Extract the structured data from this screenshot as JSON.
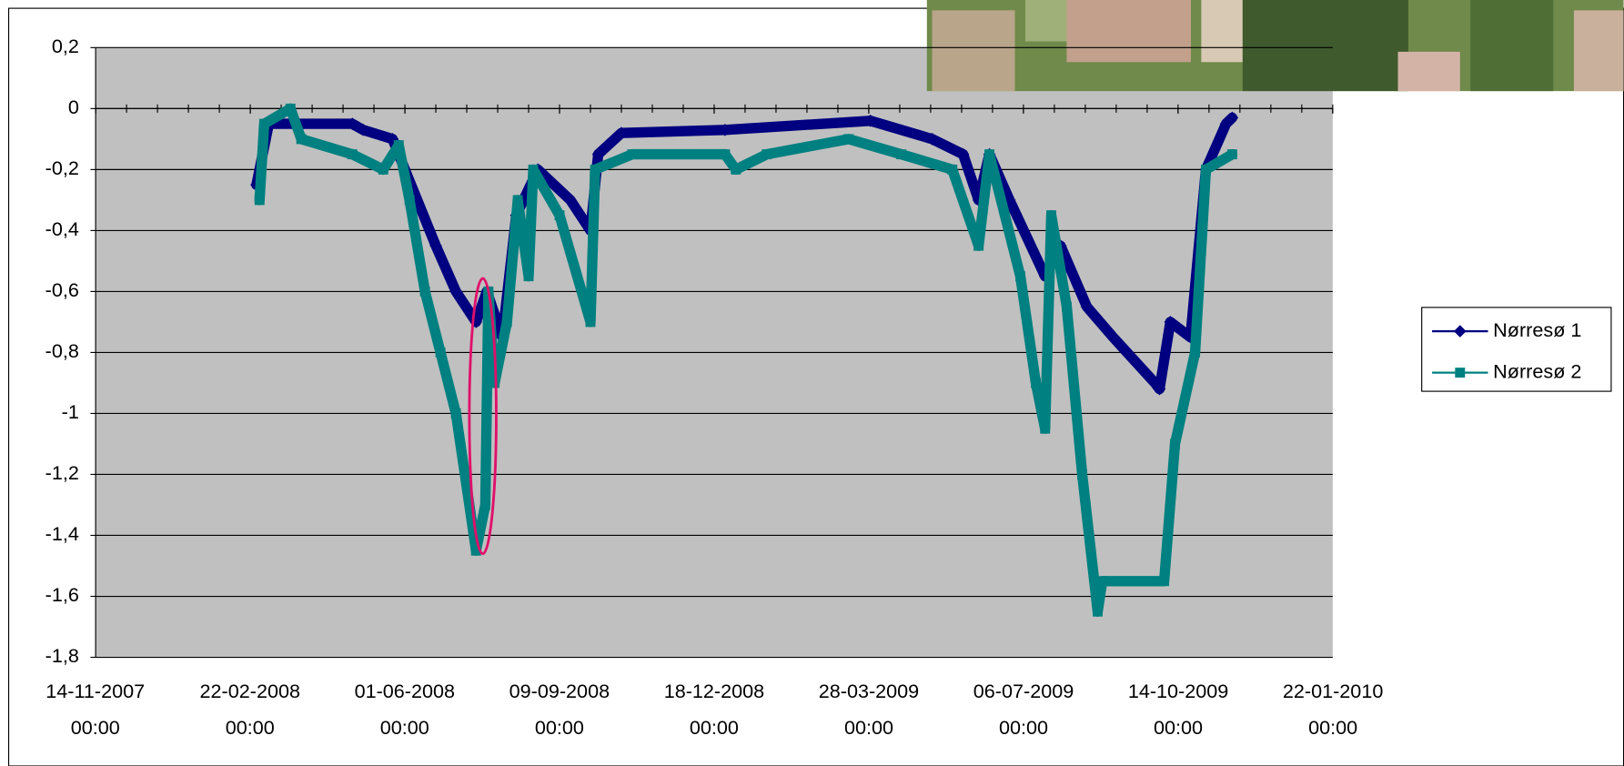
{
  "chart_data": {
    "type": "line",
    "xlim": [
      "2007-11-14",
      "2010-01-22"
    ],
    "xticks": [
      {
        "value": "2007-11-14",
        "label": "14-11-2007 00:00"
      },
      {
        "value": "2008-02-22",
        "label": "22-02-2008 00:00"
      },
      {
        "value": "2008-06-01",
        "label": "01-06-2008 00:00"
      },
      {
        "value": "2008-09-09",
        "label": "09-09-2008 00:00"
      },
      {
        "value": "2008-12-18",
        "label": "18-12-2008 00:00"
      },
      {
        "value": "2009-03-28",
        "label": "28-03-2009 00:00"
      },
      {
        "value": "2009-07-06",
        "label": "06-07-2009 00:00"
      },
      {
        "value": "2009-10-14",
        "label": "14-10-2009 00:00"
      },
      {
        "value": "2010-01-22",
        "label": "22-01-2010 00:00"
      }
    ],
    "ylim": [
      -1.8,
      0.2
    ],
    "yticks": [
      {
        "value": 0.2,
        "label": "0,2"
      },
      0,
      {
        "value": -0.2,
        "label": "-0,2"
      },
      {
        "value": -0.4,
        "label": "-0,4"
      },
      {
        "value": -0.6,
        "label": "-0,6"
      },
      {
        "value": -0.8,
        "label": "-0,8"
      },
      -1,
      {
        "value": -1.2,
        "label": "-1,2"
      },
      {
        "value": -1.4,
        "label": "-1,4"
      },
      {
        "value": -1.6,
        "label": "-1,6"
      },
      {
        "value": -1.8,
        "label": "-1,8"
      }
    ],
    "grid": true,
    "legend": "right",
    "series": [
      {
        "name": "Nørresø 1",
        "color": "#000080",
        "marker": "diamond",
        "x": [
          "2008-02-26",
          "2008-03-05",
          "2008-04-28",
          "2008-05-05",
          "2008-05-24",
          "2008-06-21",
          "2008-07-04",
          "2008-07-17",
          "2008-07-24",
          "2008-08-03",
          "2008-08-12",
          "2008-08-26",
          "2008-09-16",
          "2008-09-29",
          "2008-10-04",
          "2008-10-19",
          "2008-12-25",
          "2009-03-29",
          "2009-05-08",
          "2009-05-28",
          "2009-06-07",
          "2009-06-14",
          "2009-06-27",
          "2009-07-20",
          "2009-07-30",
          "2009-08-16",
          "2009-09-02",
          "2009-09-29",
          "2009-10-02",
          "2009-10-09",
          "2009-10-22",
          "2009-11-01",
          "2009-11-14",
          "2009-11-18"
        ],
        "values": [
          -0.25,
          -0.05,
          -0.05,
          -0.07,
          -0.1,
          -0.45,
          -0.6,
          -0.7,
          -0.6,
          -0.75,
          -0.35,
          -0.2,
          -0.3,
          -0.4,
          -0.15,
          -0.08,
          -0.07,
          -0.04,
          -0.1,
          -0.15,
          -0.3,
          -0.15,
          -0.3,
          -0.55,
          -0.45,
          -0.65,
          -0.75,
          -0.9,
          -0.92,
          -0.7,
          -0.75,
          -0.2,
          -0.05,
          -0.03
        ]
      },
      {
        "name": "Nørresø 2",
        "color": "#008080",
        "marker": "square",
        "x": [
          "2008-02-28",
          "2008-03-02",
          "2008-03-19",
          "2008-03-26",
          "2008-04-28",
          "2008-05-18",
          "2008-05-28",
          "2008-06-04",
          "2008-06-14",
          "2008-06-24",
          "2008-07-04",
          "2008-07-17",
          "2008-07-23",
          "2008-07-25",
          "2008-07-29",
          "2008-08-06",
          "2008-08-13",
          "2008-08-20",
          "2008-08-23",
          "2008-09-09",
          "2008-09-29",
          "2008-10-02",
          "2008-10-26",
          "2008-12-25",
          "2009-01-01",
          "2009-01-21",
          "2009-03-15",
          "2009-04-18",
          "2009-05-21",
          "2009-06-07",
          "2009-06-14",
          "2009-07-04",
          "2009-07-14",
          "2009-07-20",
          "2009-07-24",
          "2009-08-03",
          "2009-08-13",
          "2009-08-23",
          "2009-08-26",
          "2009-10-05",
          "2009-10-12",
          "2009-10-25",
          "2009-11-01",
          "2009-11-18"
        ],
        "values": [
          -0.3,
          -0.05,
          0,
          -0.1,
          -0.15,
          -0.2,
          -0.12,
          -0.3,
          -0.6,
          -0.8,
          -1.0,
          -1.45,
          -1.3,
          -0.6,
          -0.9,
          -0.7,
          -0.3,
          -0.55,
          -0.2,
          -0.35,
          -0.7,
          -0.2,
          -0.15,
          -0.15,
          -0.2,
          -0.15,
          -0.1,
          -0.15,
          -0.2,
          -0.45,
          -0.15,
          -0.55,
          -0.9,
          -1.05,
          -0.35,
          -0.65,
          -1.2,
          -1.65,
          -1.55,
          -1.55,
          -1.1,
          -0.8,
          -0.2,
          -0.15
        ]
      }
    ]
  }
}
